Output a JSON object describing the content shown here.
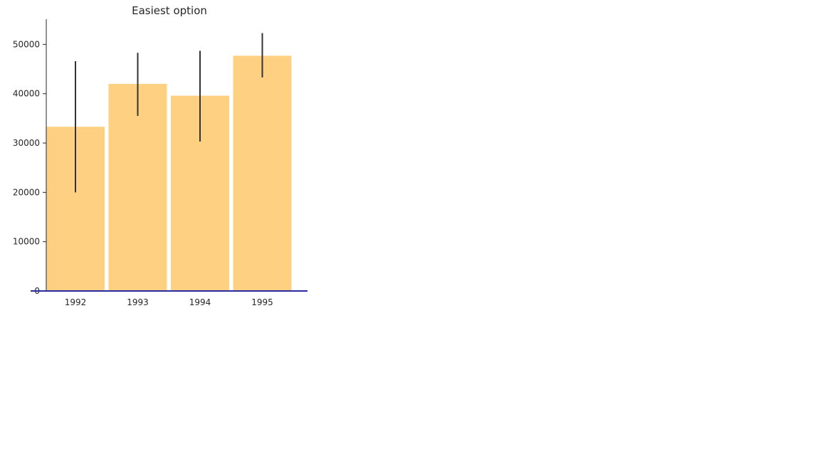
{
  "chart_data": {
    "type": "bar",
    "title": "Easiest option",
    "xlabel": "",
    "ylabel": "",
    "categories": [
      "1992",
      "1993",
      "1994",
      "1995"
    ],
    "values": [
      33300,
      42000,
      39600,
      47700
    ],
    "error_low": [
      20000,
      35500,
      30300,
      43300
    ],
    "error_high": [
      46600,
      48300,
      48700,
      52300
    ],
    "ylim": [
      0,
      55000
    ],
    "yticks": [
      "0",
      "10000",
      "20000",
      "30000",
      "40000",
      "50000"
    ],
    "grid": false,
    "bar_color": "#fed081",
    "error_color": "#333333",
    "baseline_color": "#2a2aa0",
    "axis_color": "#262626"
  }
}
